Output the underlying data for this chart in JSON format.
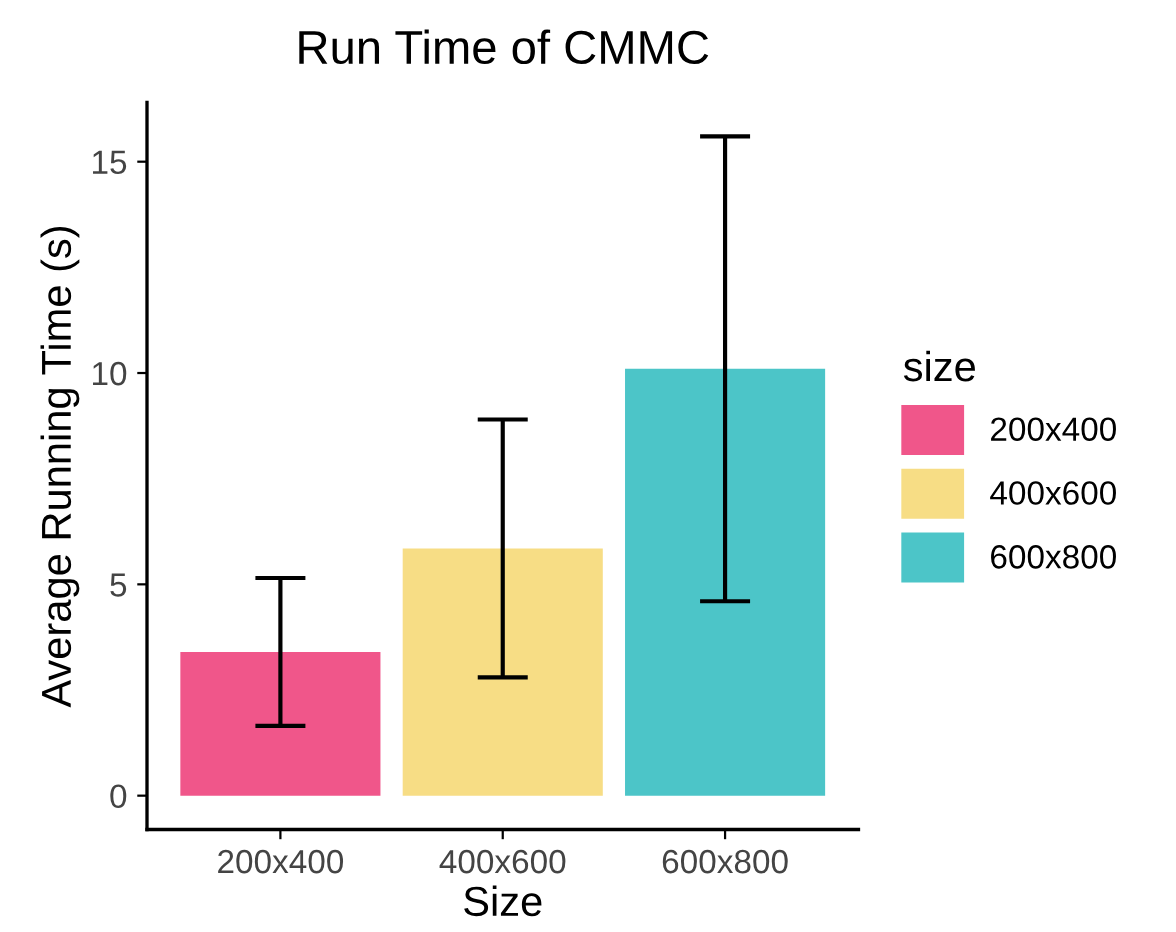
{
  "chart_data": {
    "type": "bar",
    "title": "Run Time of CMMC",
    "xlabel": "Size",
    "ylabel": "Average Running Time (s)",
    "legend_title": "size",
    "categories": [
      "200x400",
      "400x600",
      "600x800"
    ],
    "series": [
      {
        "name": "200x400",
        "color": "#f0568a",
        "values": [
          3.4,
          null,
          null
        ],
        "errors": [
          1.75,
          null,
          null
        ]
      },
      {
        "name": "400x600",
        "color": "#f7dd85",
        "values": [
          null,
          5.85,
          null
        ],
        "errors": [
          null,
          3.05,
          null
        ]
      },
      {
        "name": "600x800",
        "color": "#4cc5c8",
        "values": [
          null,
          null,
          10.1
        ],
        "errors": [
          null,
          null,
          5.5
        ]
      }
    ],
    "ylim": [
      -0.8,
      16.4
    ],
    "yticks": [
      0,
      5,
      10,
      15
    ],
    "grid": false,
    "legend": "right"
  }
}
